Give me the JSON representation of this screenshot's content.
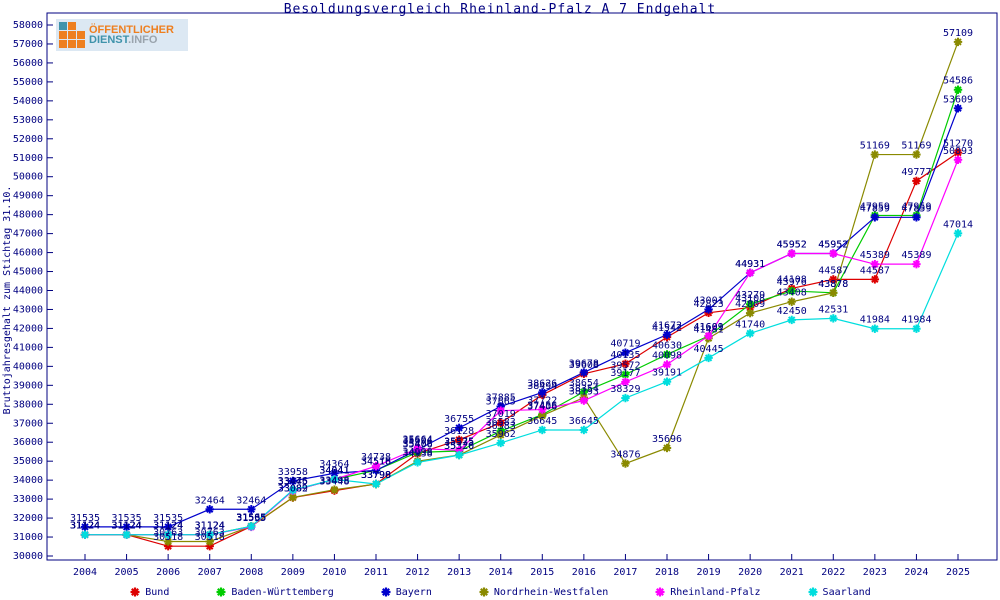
{
  "title": "Besoldungsvergleich Rheinland-Pfalz A 7 Endgehalt",
  "logo": {
    "line1": "ÖFFENTLICHER",
    "line2a": "DIENST",
    "line2b": ".INFO",
    "orange": "#ee7f1f",
    "teal": "#3f93ab",
    "panel_bg": "#dce8f3"
  },
  "axis": {
    "ylabel": "Bruttojahresgehalt zum Stichtag 31.10.",
    "axis_color": "#000080",
    "label_color": "#000080"
  },
  "chart_data": {
    "type": "line",
    "title": "Besoldungsvergleich Rheinland-Pfalz A 7 Endgehalt",
    "ylabel": "Bruttojahresgehalt zum Stichtag 31.10.",
    "xlabel": "",
    "x": [
      2004,
      2005,
      2006,
      2007,
      2008,
      2009,
      2010,
      2011,
      2012,
      2013,
      2014,
      2015,
      2016,
      2017,
      2018,
      2019,
      2020,
      2021,
      2022,
      2023,
      2024,
      2025
    ],
    "ylim": [
      30000,
      58000
    ],
    "ytick_step": 1000,
    "grid": false,
    "legend_position": "bottom",
    "point_labels": true,
    "series": [
      {
        "name": "Bund",
        "color": "#dd0000",
        "values": [
          31124,
          31124,
          30518,
          30518,
          31565,
          33082,
          33448,
          33798,
          35406,
          36128,
          37019,
          38494,
          39608,
          40135,
          41542,
          42823,
          43108,
          44108,
          44587,
          44587,
          49777,
          51270
        ]
      },
      {
        "name": "Baden-Württemberg",
        "color": "#00cc00",
        "values": [
          31124,
          31124,
          31124,
          31124,
          31565,
          33445,
          34041,
          34518,
          35466,
          35535,
          36583,
          37456,
          38654,
          39572,
          40630,
          41601,
          43279,
          43976,
          43878,
          47959,
          47959,
          54586
        ]
      },
      {
        "name": "Bayern",
        "color": "#0000cc",
        "values": [
          31535,
          31535,
          31535,
          32464,
          32464,
          33958,
          34364,
          34516,
          35604,
          36755,
          37885,
          38626,
          39678,
          40719,
          41672,
          43001,
          44931,
          45952,
          45952,
          47859,
          47859,
          53609
        ]
      },
      {
        "name": "Nordrhein-Westfalen",
        "color": "#8a8a00",
        "values": [
          31124,
          31124,
          30763,
          30763,
          31565,
          33089,
          33498,
          33790,
          34998,
          35326,
          36383,
          37406,
          38354,
          34876,
          35696,
          41481,
          42809,
          43408,
          43878,
          51169,
          51169,
          57109
        ]
      },
      {
        "name": "Rheinland-Pfalz",
        "color": "#ff00ff",
        "values": [
          31124,
          31124,
          31124,
          31124,
          31535,
          33445,
          34041,
          34738,
          35664,
          35575,
          37665,
          37722,
          38193,
          39177,
          40098,
          41609,
          44931,
          45952,
          45952,
          45389,
          45389,
          50893
        ]
      },
      {
        "name": "Saarland",
        "color": "#00dede",
        "values": [
          31124,
          31124,
          31124,
          31124,
          31565,
          33476,
          34041,
          33798,
          34938,
          35320,
          35962,
          36645,
          36645,
          38329,
          39191,
          40445,
          41740,
          42450,
          42531,
          41984,
          41984,
          47014
        ]
      }
    ]
  }
}
